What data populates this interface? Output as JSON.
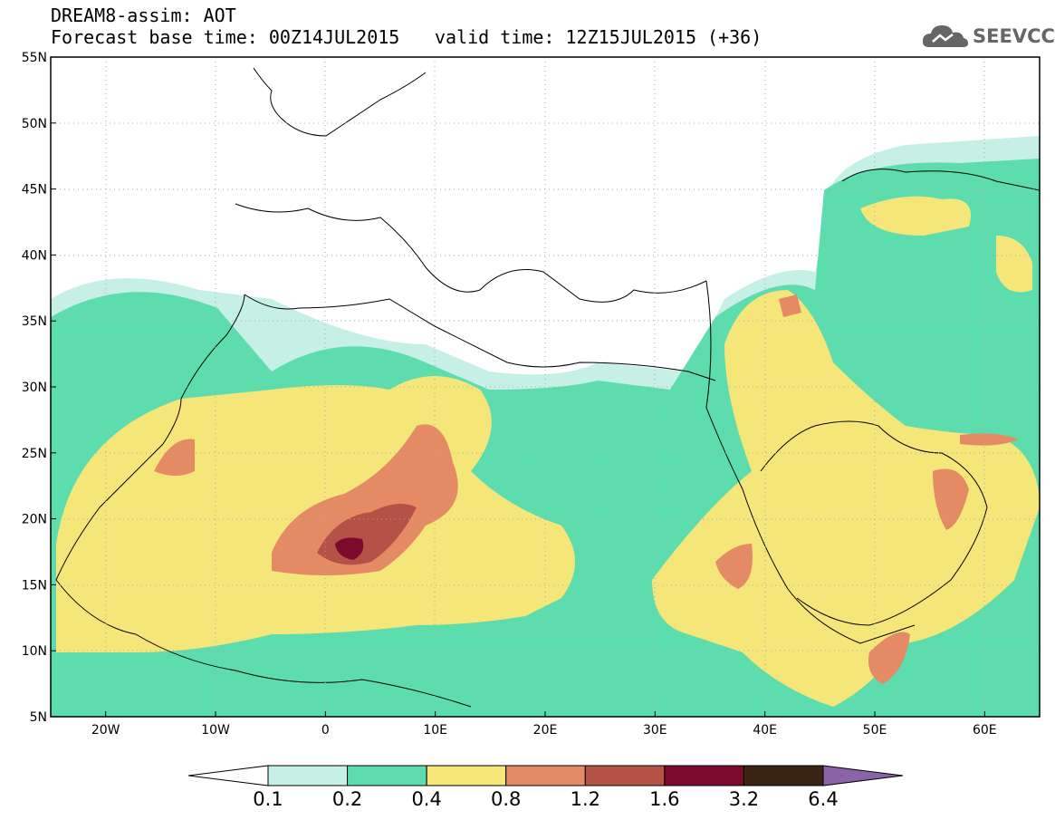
{
  "header": {
    "title": "DREAM8-assim: AOT",
    "base_time": "Forecast base time: 00Z14JUL2015",
    "valid_time": "valid time: 12Z15JUL2015 (+36)",
    "logo_text": "SEEVCCC",
    "logo_icon": "cloud-icon"
  },
  "map": {
    "lon_range": [
      -25,
      65
    ],
    "lat_range": [
      5,
      55
    ],
    "lat_labels": [
      "55N",
      "50N",
      "45N",
      "40N",
      "35N",
      "30N",
      "25N",
      "20N",
      "15N",
      "10N",
      "5N"
    ],
    "lon_labels": [
      "20W",
      "10W",
      "0",
      "10E",
      "20E",
      "30E",
      "40E",
      "50E",
      "60E"
    ],
    "gridlines": "dotted"
  },
  "colorbar": {
    "levels": [
      "0.1",
      "0.2",
      "0.4",
      "0.8",
      "1.2",
      "1.6",
      "3.2",
      "6.4"
    ],
    "colors": [
      "#ffffff",
      "#c6efe6",
      "#5ddcad",
      "#f5e67a",
      "#e48a64",
      "#b55248",
      "#7b0a2c",
      "#3a2514",
      "#8a63a8"
    ]
  }
}
